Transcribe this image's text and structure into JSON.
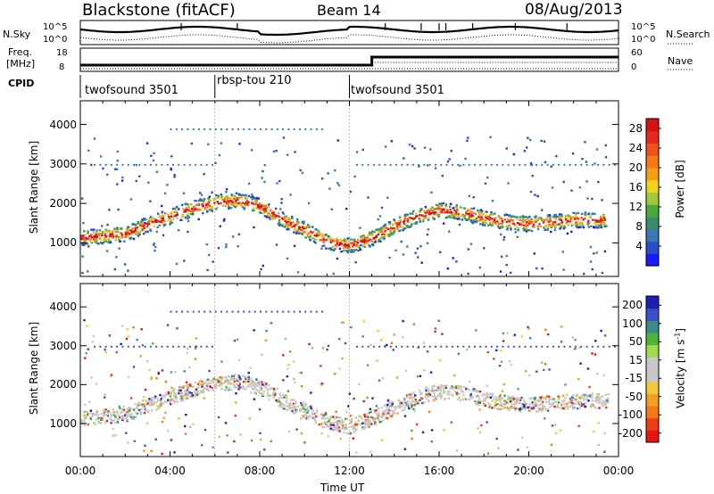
{
  "header": {
    "title": "Blackstone (fitACF)",
    "beam": "Beam 14",
    "date": "08/Aug/2013"
  },
  "status_panels": {
    "nsky_label": "N.Sky",
    "nsearch_label": "N.Search",
    "nsky_ticks": [
      "10^5",
      "10^0"
    ],
    "nsearch_ticks": [
      "10^5",
      "10^0"
    ],
    "freq_label_line1": "Freq.",
    "freq_label_line2": "[MHz]",
    "freq_ticks": [
      "18",
      "8"
    ],
    "nave_label": "Nave",
    "nave_ticks": [
      "60",
      "0"
    ],
    "cpid_label": "CPID",
    "cpid_segments": [
      {
        "start_hour": 0,
        "end_hour": 6,
        "name": "twofsound 3501"
      },
      {
        "start_hour": 6,
        "end_hour": 12,
        "name": "rbsp-tou 210"
      },
      {
        "start_hour": 12,
        "end_hour": 24,
        "name": "twofsound 3501"
      }
    ],
    "freq_step_hour": 13
  },
  "chart_data": [
    {
      "type": "heatmap",
      "title": "",
      "xlabel": "Time UT",
      "ylabel": "Slant Range [km]",
      "xlim": [
        0,
        24
      ],
      "ylim": [
        150,
        4600
      ],
      "x_ticks": [
        "00:00",
        "04:00",
        "08:00",
        "12:00",
        "16:00",
        "20:00",
        "00:00"
      ],
      "x_tick_hours": [
        0,
        4,
        8,
        12,
        16,
        20,
        24
      ],
      "y_ticks": [
        1000,
        2000,
        3000,
        4000
      ],
      "colorbar": {
        "label": "Power [dB]",
        "range": [
          0,
          30
        ],
        "tick_labels": [
          "4",
          "8",
          "12",
          "16",
          "20",
          "24",
          "28"
        ],
        "tick_values": [
          4,
          8,
          12,
          16,
          20,
          24,
          28
        ],
        "colors": [
          "#1a1aff",
          "#2a4ec8",
          "#3a78b4",
          "#3a8c6c",
          "#4caa3c",
          "#a0c83c",
          "#f0d21e",
          "#f5a014",
          "#f57814",
          "#f0501e",
          "#e6281e",
          "#d21414"
        ]
      },
      "echo_band_km": [
        [
          0,
          1150
        ],
        [
          2,
          1250
        ],
        [
          3,
          1500
        ],
        [
          4,
          1700
        ],
        [
          5,
          1900
        ],
        [
          6,
          2050
        ],
        [
          7,
          2100
        ],
        [
          8,
          1950
        ],
        [
          9,
          1600
        ],
        [
          10,
          1350
        ],
        [
          11,
          1050
        ],
        [
          12,
          950
        ],
        [
          13,
          1150
        ],
        [
          14,
          1450
        ],
        [
          15,
          1700
        ],
        [
          16,
          1850
        ],
        [
          17,
          1800
        ],
        [
          18,
          1650
        ],
        [
          19,
          1550
        ],
        [
          20,
          1500
        ],
        [
          21,
          1550
        ],
        [
          22,
          1600
        ],
        [
          23,
          1600
        ],
        [
          24,
          1600
        ]
      ]
    },
    {
      "type": "heatmap",
      "title": "",
      "xlabel": "Time UT",
      "ylabel": "Slant Range [km]",
      "xlim": [
        0,
        24
      ],
      "ylim": [
        150,
        4600
      ],
      "x_ticks": [
        "00:00",
        "04:00",
        "08:00",
        "12:00",
        "16:00",
        "20:00",
        "00:00"
      ],
      "x_tick_hours": [
        0,
        4,
        8,
        12,
        16,
        20,
        24
      ],
      "y_ticks": [
        1000,
        2000,
        3000,
        4000
      ],
      "colorbar": {
        "label": "Velocity [m s",
        "label_sup": "-1",
        "label_end": "]",
        "range": [
          -250,
          250
        ],
        "tick_labels": [
          "200",
          "100",
          "50",
          "15",
          "-15",
          "-50",
          "-100",
          "-200"
        ],
        "tick_values": [
          200,
          100,
          50,
          15,
          -15,
          -50,
          -100,
          -200
        ],
        "colors": [
          "#e61414",
          "#f03c14",
          "#f57814",
          "#f0a01e",
          "#f0c83c",
          "#c8c8c8",
          "#c8c8c8",
          "#a0dc50",
          "#50b43c",
          "#3c8c8c",
          "#3c50c8",
          "#1e1eb4"
        ]
      }
    }
  ]
}
